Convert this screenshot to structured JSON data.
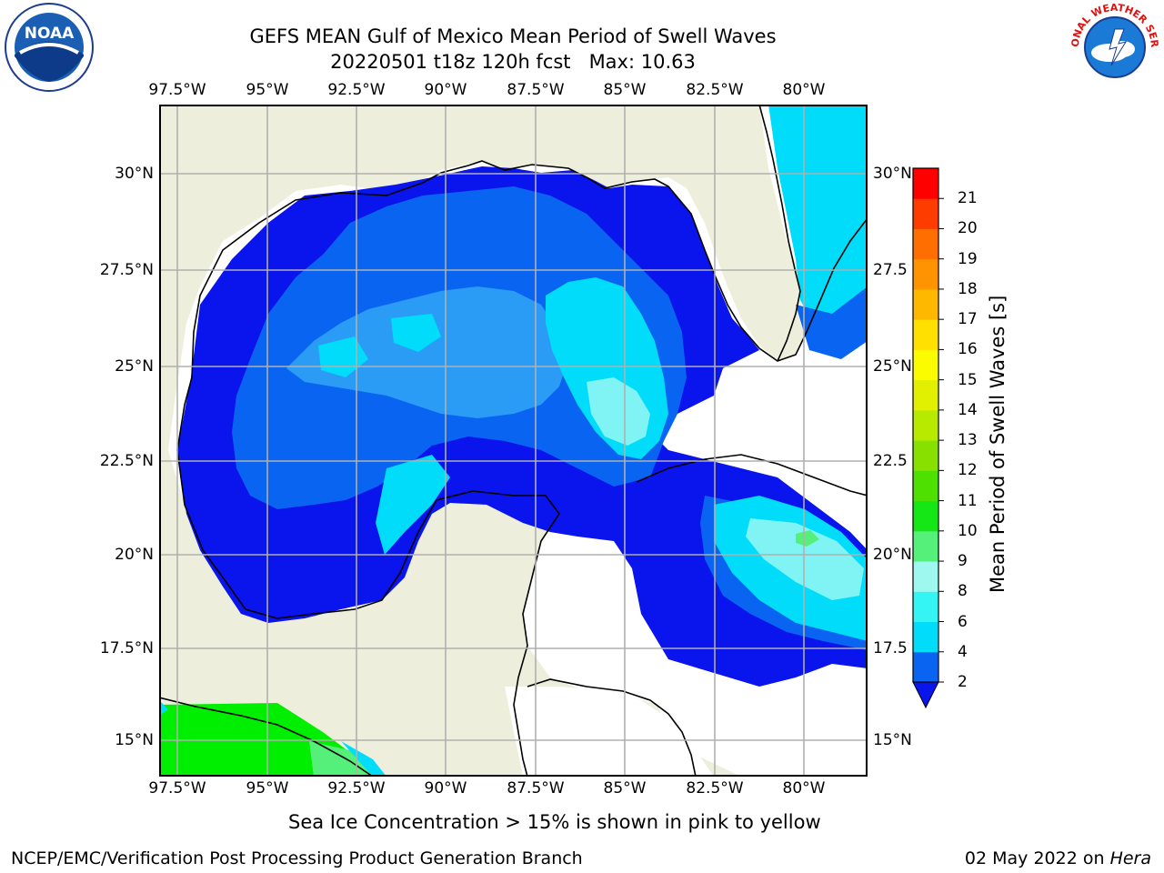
{
  "title": {
    "line1": "GEFS MEAN Gulf of Mexico Mean Period of Swell Waves",
    "line2": "20220501 t18z 120h fcst   Max: 10.63"
  },
  "logos": {
    "noaa_text": "NOAA",
    "nws_text": "NATIONAL WEATHER SERVICE"
  },
  "axes": {
    "lon_labels": [
      "97.5°W",
      "95°W",
      "92.5°W",
      "90°W",
      "87.5°W",
      "85°W",
      "82.5°W",
      "80°W"
    ],
    "lat_labels_left": [
      "30°N",
      "27.5°N",
      "25°N",
      "22.5°N",
      "20°N",
      "17.5°N",
      "15°N"
    ],
    "lat_labels_right": [
      "30°N",
      "27.5",
      "25°N",
      "22.5",
      "20°N",
      "17.5",
      "15°N"
    ]
  },
  "colorbar": {
    "label": "Mean Period of Swell Waves [s]",
    "ticks": [
      "2",
      "4",
      "6",
      "8",
      "9",
      "10",
      "11",
      "12",
      "13",
      "14",
      "15",
      "16",
      "17",
      "18",
      "19",
      "20",
      "21"
    ],
    "colors": [
      "#0a64f2",
      "#00dcfa",
      "#34f4f4",
      "#9ef8f0",
      "#55f07a",
      "#15e615",
      "#4ee000",
      "#88e000",
      "#b8ea00",
      "#e0f000",
      "#fcfc00",
      "#ffe000",
      "#ffb800",
      "#ff9400",
      "#ff6e00",
      "#ff3c00",
      "#fe0000"
    ],
    "under_color": "#0a14ec"
  },
  "map_colors": {
    "land": "#eeeedc",
    "ocean_no_data": "#ffffff",
    "deep_blue": "#0a14ec",
    "mid_blue": "#0a64f2",
    "light_blue": "#2a9cf6",
    "cyan": "#00dcfa",
    "pale_cyan": "#80f4f4",
    "green": "#00ee00",
    "light_green": "#55f07a",
    "grid": "#b0b0b0"
  },
  "caption": "Sea Ice Concentration > 15% is shown in pink to yellow",
  "footer": {
    "left": "NCEP/EMC/Verification Post Processing Product Generation Branch",
    "date": "02 May 2022 on",
    "machine": "Hera"
  }
}
